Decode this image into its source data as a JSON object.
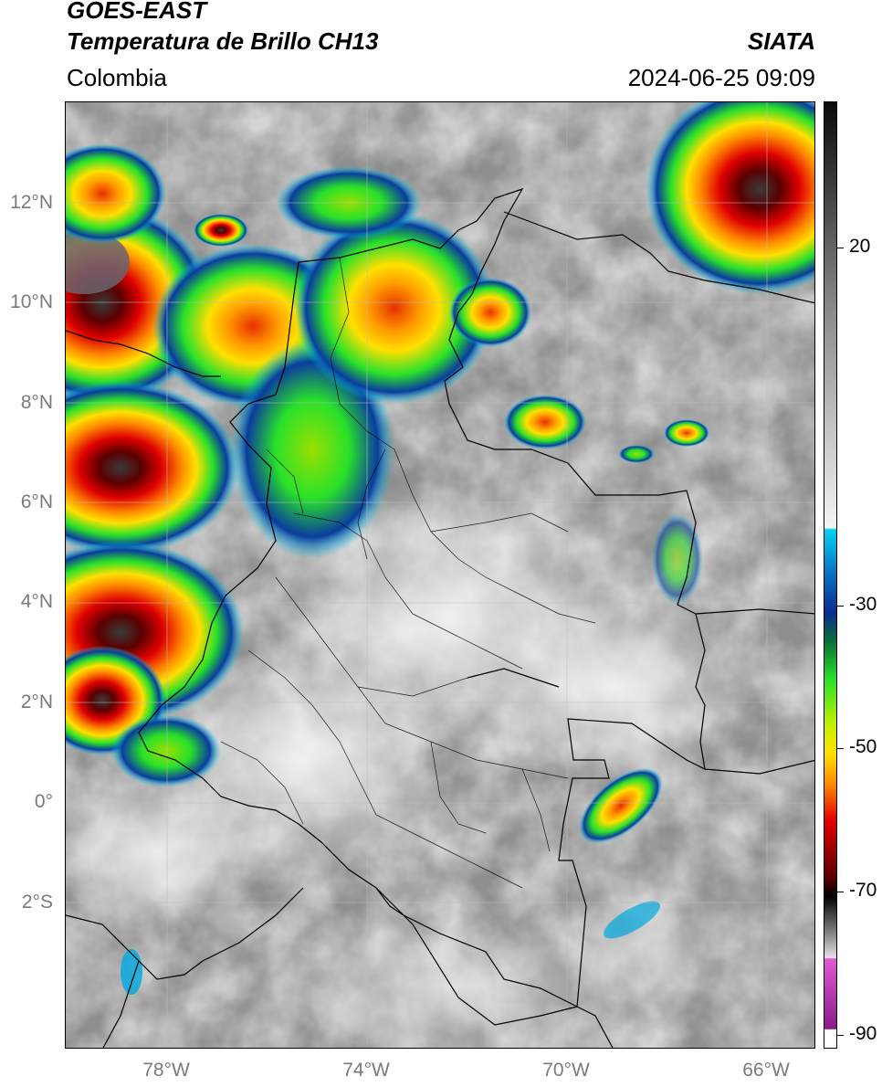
{
  "header": {
    "title_line1": "GOES-EAST",
    "title_line2": "Temperatura de Brillo CH13",
    "region": "Colombia",
    "source": "SIATA",
    "datetime": "2024-06-25 09:09"
  },
  "map": {
    "lat_labels": [
      "12°N",
      "10°N",
      "8°N",
      "6°N",
      "4°N",
      "2°N",
      "0°",
      "2°S"
    ],
    "lat_values": [
      12,
      10,
      8,
      6,
      4,
      2,
      0,
      -2
    ],
    "lon_labels": [
      "78°W",
      "74°W",
      "70°W",
      "66°W"
    ],
    "lon_values": [
      -78,
      -74,
      -70,
      -66
    ],
    "extent": {
      "lon_min": -80.0,
      "lon_max": -65.0,
      "lat_min": -5.2,
      "lat_max": 13.8
    }
  },
  "colorbar": {
    "labels": [
      "20",
      "-30",
      "-50",
      "-70",
      "-90"
    ],
    "values": [
      20,
      -30,
      -50,
      -70,
      -90
    ],
    "range": [
      -92,
      36
    ],
    "colors": {
      "warm_gray_top": "#111111",
      "gray_mid": "#9a9a9a",
      "white": "#f4f4f4",
      "cyan": "#00d4f0",
      "blue": "#0a3c9e",
      "green": "#28e12a",
      "yellow": "#ffe000",
      "orange": "#ff8c00",
      "red": "#e00000",
      "dark_red": "#5a0000",
      "black": "#000000",
      "pink": "#e05ad0",
      "purple": "#8a1a8a"
    }
  }
}
